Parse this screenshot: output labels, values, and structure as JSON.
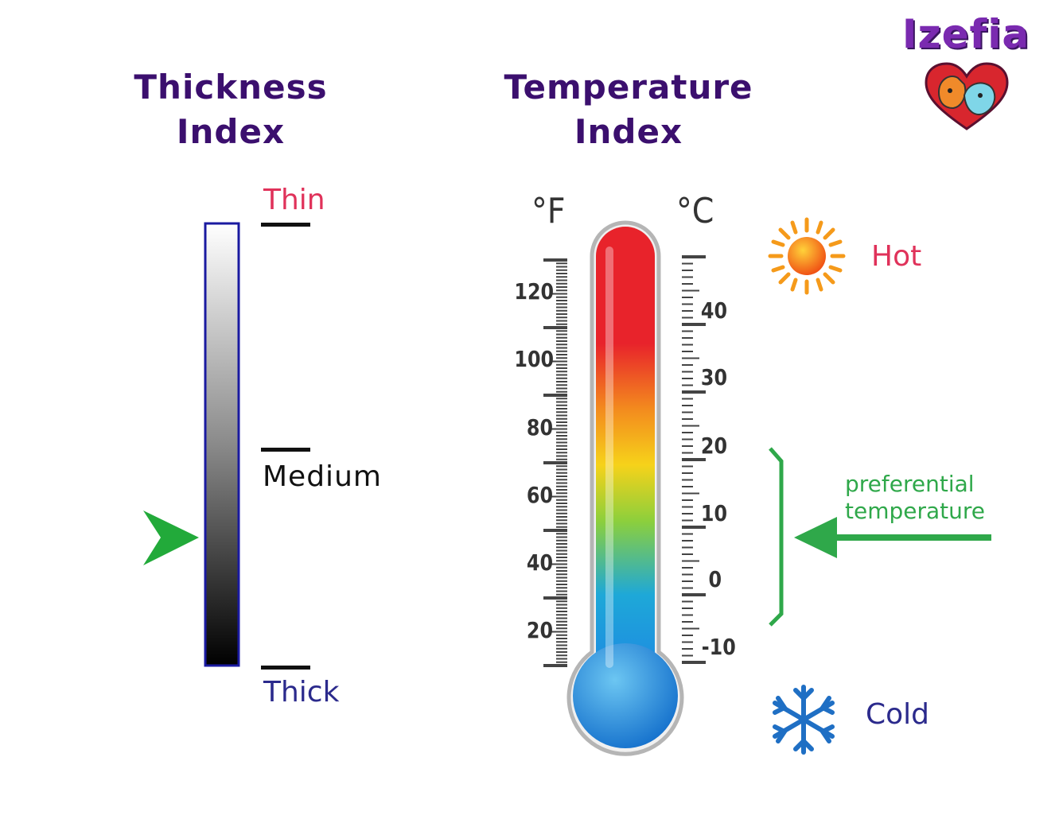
{
  "brand": {
    "name": "Izefia"
  },
  "thickness": {
    "heading_line1": "Thickness",
    "heading_line2": "Index",
    "labels": {
      "thin": "Thin",
      "medium": "Medium",
      "thick": "Thick"
    },
    "indicator_level": 0.31,
    "colors": {
      "thin": "#e0325a",
      "thick": "#2b2a8c",
      "arrow": "#22aa3a",
      "bar_border": "#1a1aa0"
    }
  },
  "temperature": {
    "heading_line1": "Temperature",
    "heading_line2": "Index",
    "unit_f": "°F",
    "unit_c": "°C",
    "fahrenheit_ticks": [
      "120",
      "100",
      "80",
      "60",
      "40",
      "20"
    ],
    "celsius_ticks": [
      "40",
      "30",
      "20",
      "10",
      "0",
      "-10"
    ],
    "hot_label": "Hot",
    "cold_label": "Cold",
    "preferential_line1": "preferential",
    "preferential_line2": "temperature",
    "colors": {
      "hot": "#e0325a",
      "cold": "#2b2a8c",
      "preferential": "#2fa84a",
      "mercury_top": "#e8232b",
      "mercury_bottom": "#1e8fe0"
    },
    "icons": {
      "hot": "sun-icon",
      "cold": "snowflake-icon"
    }
  }
}
